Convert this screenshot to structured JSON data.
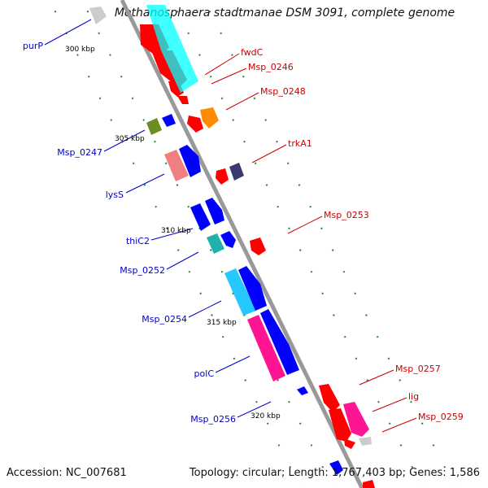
{
  "title": "Methanosphaera stadtmanae DSM 3091, complete genome",
  "footer": {
    "accession": "Accession: NC_007681",
    "topology": "Topology: circular; Length: 1,767,403 bp; Genes: 1,586"
  },
  "ticks": [
    "300 kbp",
    "305 kbp",
    "310 kbp",
    "315 kbp",
    "320 kbp"
  ],
  "labels_left": [
    "purP",
    "Msp_0247",
    "lysS",
    "thiC2",
    "Msp_0252",
    "Msp_0254",
    "polC",
    "Msp_0256"
  ],
  "labels_right": [
    "fwdC",
    "Msp_0246",
    "Msp_0248",
    "trkA1",
    "Msp_0253",
    "Msp_0257",
    "lig",
    "Msp_0259"
  ],
  "colors": {
    "forward_label": "#0000cc",
    "reverse_label": "#cc0000",
    "axis": "#999999",
    "tick_dots": "#228b22"
  }
}
